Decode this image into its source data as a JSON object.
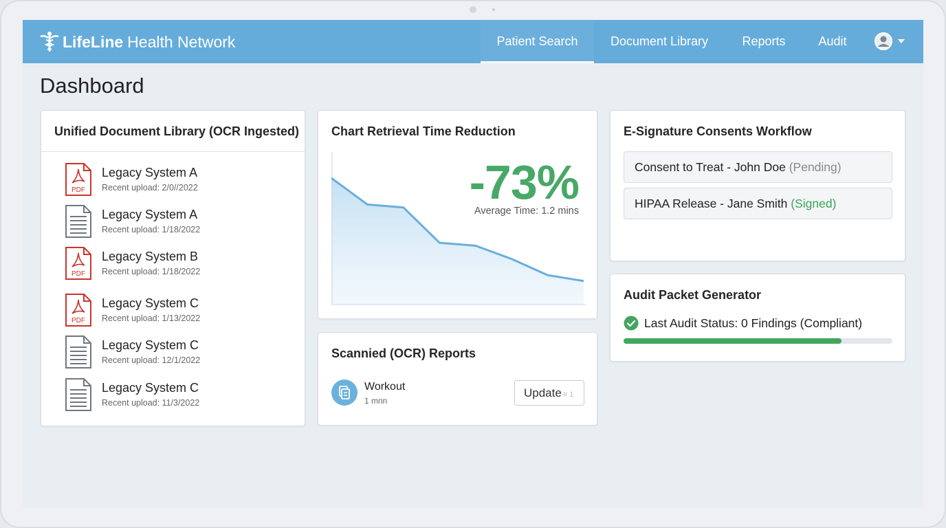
{
  "app": {
    "brand_bold": "LifeLine",
    "brand_rest": "Health Network"
  },
  "nav": {
    "items": [
      {
        "label": "Patient Search",
        "active": true
      },
      {
        "label": "Document Library",
        "active": false
      },
      {
        "label": "Reports",
        "active": false
      },
      {
        "label": "Audit",
        "active": false
      }
    ],
    "icons": {
      "logo": "caduceus-icon",
      "avatar": "user-avatar-icon",
      "caret": "chevron-down-icon"
    }
  },
  "page": {
    "title": "Dashboard"
  },
  "doc_library": {
    "title": "Unified Document Library (OCR Ingested)",
    "items": [
      {
        "name": "Legacy System A",
        "sub": "Recent upload: 2/0//2022",
        "type": "pdf",
        "icon": "pdf-icon"
      },
      {
        "name": "Legacy System A",
        "sub": "Recent upload: 1/18/2022",
        "type": "doc",
        "icon": "document-icon"
      },
      {
        "name": "Legacy System B",
        "sub": "Recent upload: 1/18/2022",
        "type": "pdf",
        "icon": "pdf-icon"
      },
      {
        "name": "Legacy System C",
        "sub": "Recent upload: 1/13/2022",
        "type": "pdf",
        "icon": "pdf-icon"
      },
      {
        "name": "Legacy System C",
        "sub": "Recent upload: 12/1/2022",
        "type": "doc",
        "icon": "document-icon"
      },
      {
        "name": "Legacy System C",
        "sub": "Recent upload: 11/3/2022",
        "type": "doc",
        "icon": "document-icon"
      }
    ],
    "pdf_label": "PDF"
  },
  "chart_card": {
    "title": "Chart Retrieval Time Reduction",
    "big_value": "-73%",
    "caption": "Average Time: 1.2 mins"
  },
  "chart_data": {
    "type": "area",
    "title": "Chart Retrieval Time Reduction",
    "xlabel": "",
    "ylabel": "",
    "x": [
      0,
      1,
      2,
      3,
      4,
      5,
      6,
      7
    ],
    "values": [
      0.86,
      0.68,
      0.66,
      0.42,
      0.4,
      0.31,
      0.2,
      0.16
    ],
    "ylim": [
      0,
      1
    ],
    "grid": false,
    "line_color": "#6aaedb"
  },
  "ocr_card": {
    "title": "Scannied (OCR) Reports",
    "item_name": "Workout",
    "item_sub": "1 mnn",
    "button_label": "Update",
    "button_faint": "≡ 1",
    "icon": "scan-document-icon"
  },
  "consents": {
    "title": "E-Signature Consents Workflow",
    "rows": [
      {
        "text": "Consent to Treat - John Doe",
        "status": "(Pending)",
        "kind": "pending"
      },
      {
        "text": "HIPAA Release - Jane Smith",
        "status": "(Signed)",
        "kind": "signed"
      }
    ]
  },
  "audit": {
    "title": "Audit Packet Generator",
    "status": "Last Audit Status: 0 Findings (Compliant)",
    "progress": 0.81,
    "icon": "check-circle-icon",
    "color": "#43a55f"
  },
  "colors": {
    "topbar": "#66acdb",
    "accent_green": "#48a868",
    "pdf_red": "#c9352b"
  }
}
